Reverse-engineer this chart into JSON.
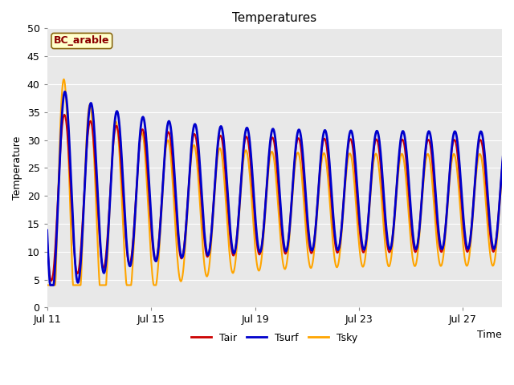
{
  "title": "Temperatures",
  "xlabel": "Time",
  "ylabel": "Temperature",
  "annotation": "BC_arable",
  "ylim": [
    0,
    50
  ],
  "yticks": [
    0,
    5,
    10,
    15,
    20,
    25,
    30,
    35,
    40,
    45,
    50
  ],
  "xtick_labels": [
    "Jul 11",
    "Jul 15",
    "Jul 19",
    "Jul 23",
    "Jul 27"
  ],
  "xtick_pos": [
    0,
    4,
    8,
    12,
    16
  ],
  "legend_labels": [
    "Tair",
    "Tsurf",
    "Tsky"
  ],
  "colors": {
    "Tair": "#cc0000",
    "Tsurf": "#0000cc",
    "Tsky": "#ffa500"
  },
  "fig_bg_color": "#ffffff",
  "plot_bg_color": "#e8e8e8",
  "grid_color": "#ffffff",
  "title_fontsize": 11,
  "axis_fontsize": 9,
  "tick_fontsize": 9,
  "n_days": 18,
  "points_per_day": 48
}
